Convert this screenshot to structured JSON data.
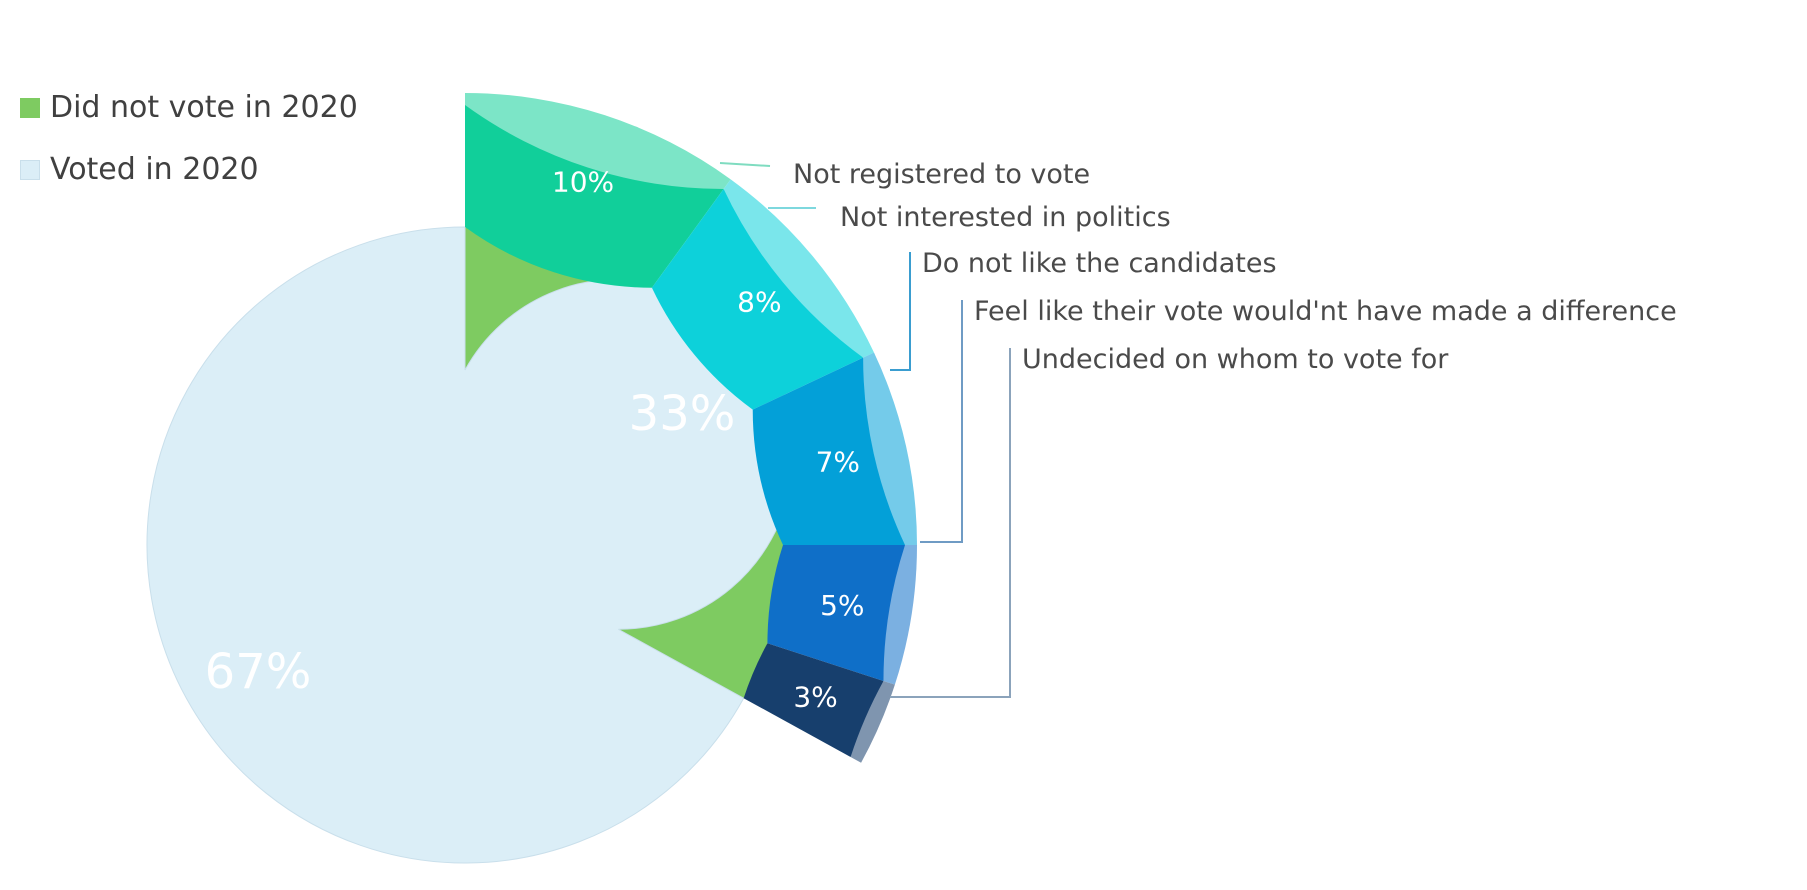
{
  "chart_data": {
    "type": "pie",
    "legend": [
      "Did not vote in 2020",
      "Voted in 2020"
    ],
    "legend_position": "top-left",
    "inner_ring": [
      {
        "name": "Did not vote in 2020",
        "value": 33,
        "label": "33%",
        "color": "#7ecb61"
      },
      {
        "name": "Voted in 2020",
        "value": 67,
        "label": "67%",
        "color": "#dbeef7"
      }
    ],
    "outer_ring": [
      {
        "name": "Not registered to vote",
        "value": 10,
        "label": "10%",
        "color": "#11cf9a"
      },
      {
        "name": "Not interested in politics",
        "value": 8,
        "label": "8%",
        "color": "#0dd1da"
      },
      {
        "name": "Do not like the candidates",
        "value": 7,
        "label": "7%",
        "color": "#03a0d8"
      },
      {
        "name": "Feel like their vote would'nt have made a difference",
        "value": 5,
        "label": "5%",
        "color": "#0f6fc8"
      },
      {
        "name": "Undecided on whom to vote for",
        "value": 3,
        "label": "3%",
        "color": "#173f6d"
      }
    ]
  }
}
